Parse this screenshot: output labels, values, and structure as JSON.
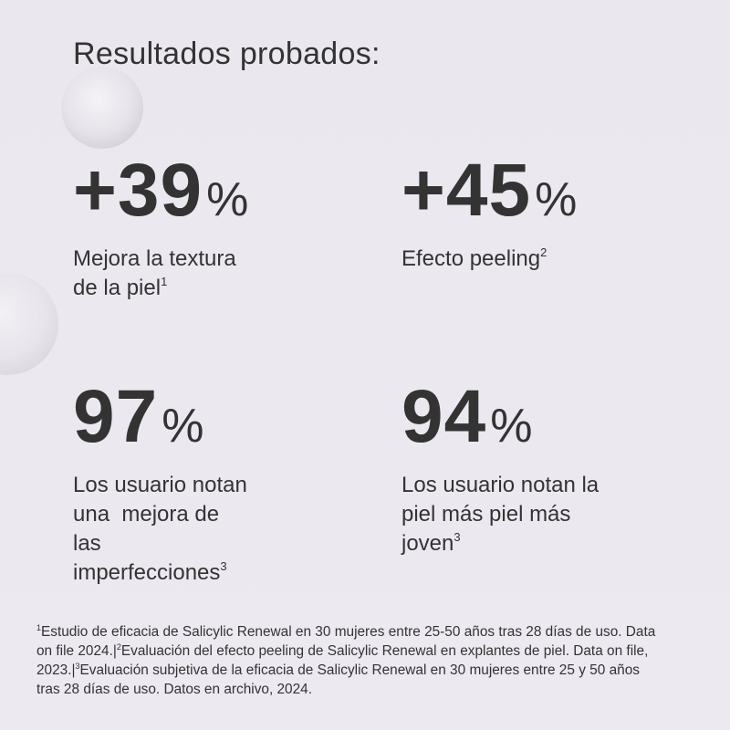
{
  "title": "Resultados probados:",
  "stats": [
    {
      "value": "+39",
      "unit": "%",
      "lines": [
        "Mejora la textura",
        "de la piel"
      ],
      "note": "1"
    },
    {
      "value": "+45",
      "unit": "%",
      "lines": [
        "Efecto peeling"
      ],
      "note": "2"
    },
    {
      "value": "97",
      "unit": "%",
      "lines": [
        "Los usuario notan",
        "una  mejora de",
        "las",
        "imperfecciones"
      ],
      "note": "3"
    },
    {
      "value": "94",
      "unit": "%",
      "lines": [
        "Los usuario notan la",
        "piel más piel más",
        "joven"
      ],
      "note": "3"
    }
  ],
  "footnote": [
    {
      "note": "1",
      "text": "Estudio de eficacia de Salicylic Renewal en 30 mujeres entre 25-50 años tras 28 días de uso. Data on file 2024.|"
    },
    {
      "note": "2",
      "text": "Evaluación del efecto peeling de Salicylic Renewal en explantes de piel. Data on file, 2023.|"
    },
    {
      "note": "3",
      "text": "Evaluación subjetiva de la eficacia de Salicylic Renewal en 30 mujeres entre 25 y 50 años tras 28 días de uso. Datos en archivo, 2024."
    }
  ]
}
